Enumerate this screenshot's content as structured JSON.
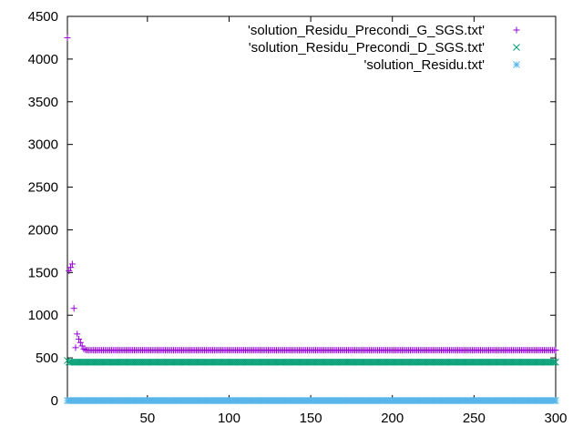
{
  "chart_data": {
    "type": "scatter",
    "title": "",
    "xlabel": "",
    "ylabel": "",
    "xlim": [
      1,
      300
    ],
    "ylim": [
      0,
      4500
    ],
    "x_ticks": [
      50,
      100,
      150,
      200,
      250,
      300
    ],
    "y_ticks": [
      0,
      500,
      1000,
      1500,
      2000,
      2500,
      3000,
      3500,
      4000,
      4500
    ],
    "grid": false,
    "legend_position": "top-right",
    "series": [
      {
        "name": "'solution_Residu_Precondi_G_SGS.txt'",
        "marker": "plus",
        "color": "#9400d3",
        "x": [
          1,
          2,
          3,
          4,
          5,
          6,
          7,
          8,
          9,
          10,
          11,
          12,
          13,
          14,
          15
        ],
        "y": [
          4250,
          1520,
          1560,
          1600,
          1080,
          620,
          780,
          720,
          680,
          640,
          605,
          595,
          592,
          590,
          590
        ],
        "constant_from_x": 16,
        "constant_to_x": 300,
        "constant_y": 590
      },
      {
        "name": "'solution_Residu_Precondi_D_SGS.txt'",
        "marker": "cross",
        "color": "#009e73",
        "x": [
          1
        ],
        "y": [
          470
        ],
        "constant_from_x": 2,
        "constant_to_x": 300,
        "constant_y": 450
      },
      {
        "name": "'solution_Residu.txt'",
        "marker": "asterisk",
        "color": "#56b4e9",
        "x": [],
        "y": [],
        "constant_from_x": 1,
        "constant_to_x": 300,
        "constant_y": 0
      }
    ]
  }
}
